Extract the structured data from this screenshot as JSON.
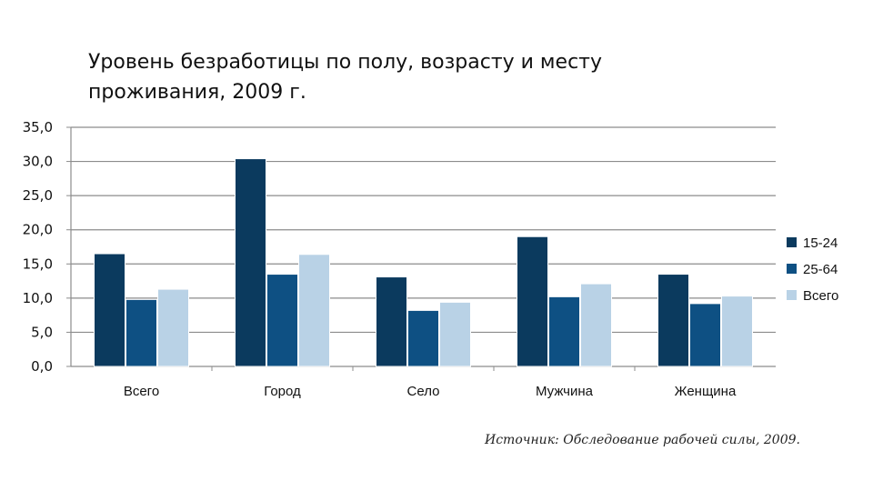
{
  "chart_data": {
    "type": "bar",
    "title": "Уровень безработицы по полу, возрасту и месту\nпроживания, 2009 г.",
    "categories": [
      "Всего",
      "Город",
      "Село",
      "Мужчина",
      "Женщина"
    ],
    "series": [
      {
        "name": "15-24",
        "values": [
          16.5,
          30.4,
          13.1,
          19.0,
          13.5
        ]
      },
      {
        "name": "25-64",
        "values": [
          9.8,
          13.5,
          8.2,
          10.2,
          9.2
        ]
      },
      {
        "name": "Всего",
        "values": [
          11.3,
          16.4,
          9.4,
          12.1,
          10.3
        ]
      }
    ],
    "ylim": [
      0,
      35
    ],
    "yticks": [
      "0,0",
      "5,0",
      "10,0",
      "15,0",
      "20,0",
      "25,0",
      "30,0",
      "35,0"
    ],
    "ytick_step": 5,
    "grid": true,
    "legend": "right",
    "colors": [
      "#0b3a5e",
      "#0e5083",
      "#b9d2e6"
    ]
  },
  "source": "Источник: Обследование рабочей силы, 2009."
}
